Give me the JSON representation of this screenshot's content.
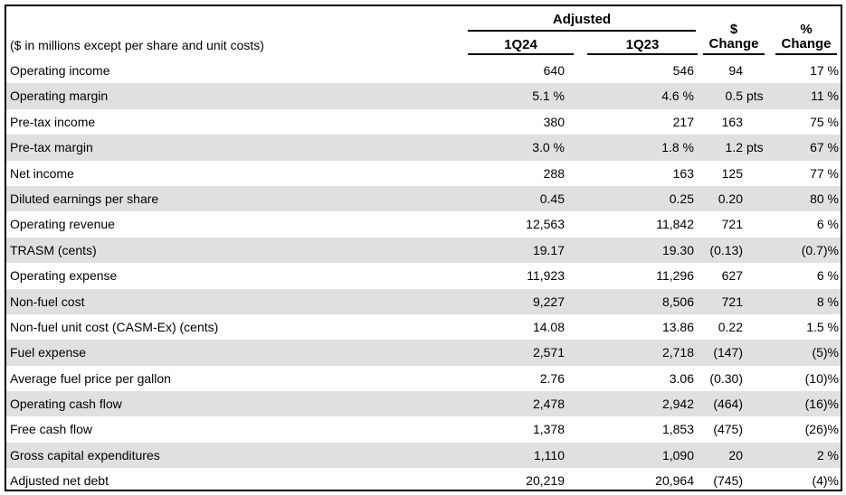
{
  "header": {
    "label": "($ in millions except per share and unit costs)",
    "group_title": "Adjusted",
    "col_q24": "1Q24",
    "col_q23": "1Q23",
    "dollar_change_line1": "$",
    "dollar_change_line2": "Change",
    "pct_change_line1": "%",
    "pct_change_line2": "Change"
  },
  "rows": [
    {
      "label": "Operating income",
      "q24": "640",
      "q23": "546",
      "dchg": "94",
      "unit": "",
      "pchg": "17 %"
    },
    {
      "label": "Operating margin",
      "q24": "5.1 %",
      "q23": "4.6 %",
      "dchg": "0.5",
      "unit": "pts",
      "pchg": "11 %"
    },
    {
      "label": "Pre-tax income",
      "q24": "380",
      "q23": "217",
      "dchg": "163",
      "unit": "",
      "pchg": "75 %"
    },
    {
      "label": "Pre-tax margin",
      "q24": "3.0 %",
      "q23": "1.8 %",
      "dchg": "1.2",
      "unit": "pts",
      "pchg": "67 %"
    },
    {
      "label": "Net income",
      "q24": "288",
      "q23": "163",
      "dchg": "125",
      "unit": "",
      "pchg": "77 %"
    },
    {
      "label": "Diluted earnings per share",
      "q24": "0.45",
      "q23": "0.25",
      "dchg": "0.20",
      "unit": "",
      "pchg": "80 %"
    },
    {
      "label": "Operating revenue",
      "q24": "12,563",
      "q23": "11,842",
      "dchg": "721",
      "unit": "",
      "pchg": "6 %"
    },
    {
      "label": "TRASM (cents)",
      "q24": "19.17",
      "q23": "19.30",
      "dchg": "(0.13)",
      "unit": "",
      "pchg": "(0.7)%"
    },
    {
      "label": "Operating expense",
      "q24": "11,923",
      "q23": "11,296",
      "dchg": "627",
      "unit": "",
      "pchg": "6 %"
    },
    {
      "label": "Non-fuel cost",
      "q24": "9,227",
      "q23": "8,506",
      "dchg": "721",
      "unit": "",
      "pchg": "8 %"
    },
    {
      "label": "Non-fuel unit cost (CASM-Ex) (cents)",
      "q24": "14.08",
      "q23": "13.86",
      "dchg": "0.22",
      "unit": "",
      "pchg": "1.5 %"
    },
    {
      "label": "Fuel expense",
      "q24": "2,571",
      "q23": "2,718",
      "dchg": "(147)",
      "unit": "",
      "pchg": "(5)%"
    },
    {
      "label": "Average fuel price per gallon",
      "q24": "2.76",
      "q23": "3.06",
      "dchg": "(0.30)",
      "unit": "",
      "pchg": "(10)%"
    },
    {
      "label": "Operating cash flow",
      "q24": "2,478",
      "q23": "2,942",
      "dchg": "(464)",
      "unit": "",
      "pchg": "(16)%"
    },
    {
      "label": "Free cash flow",
      "q24": "1,378",
      "q23": "1,853",
      "dchg": "(475)",
      "unit": "",
      "pchg": "(26)%"
    },
    {
      "label": "Gross capital expenditures",
      "q24": "1,110",
      "q23": "1,090",
      "dchg": "20",
      "unit": "",
      "pchg": "2 %"
    },
    {
      "label": "Adjusted net debt",
      "q24": "20,219",
      "q23": "20,964",
      "dchg": "(745)",
      "unit": "",
      "pchg": "(4)%"
    }
  ]
}
